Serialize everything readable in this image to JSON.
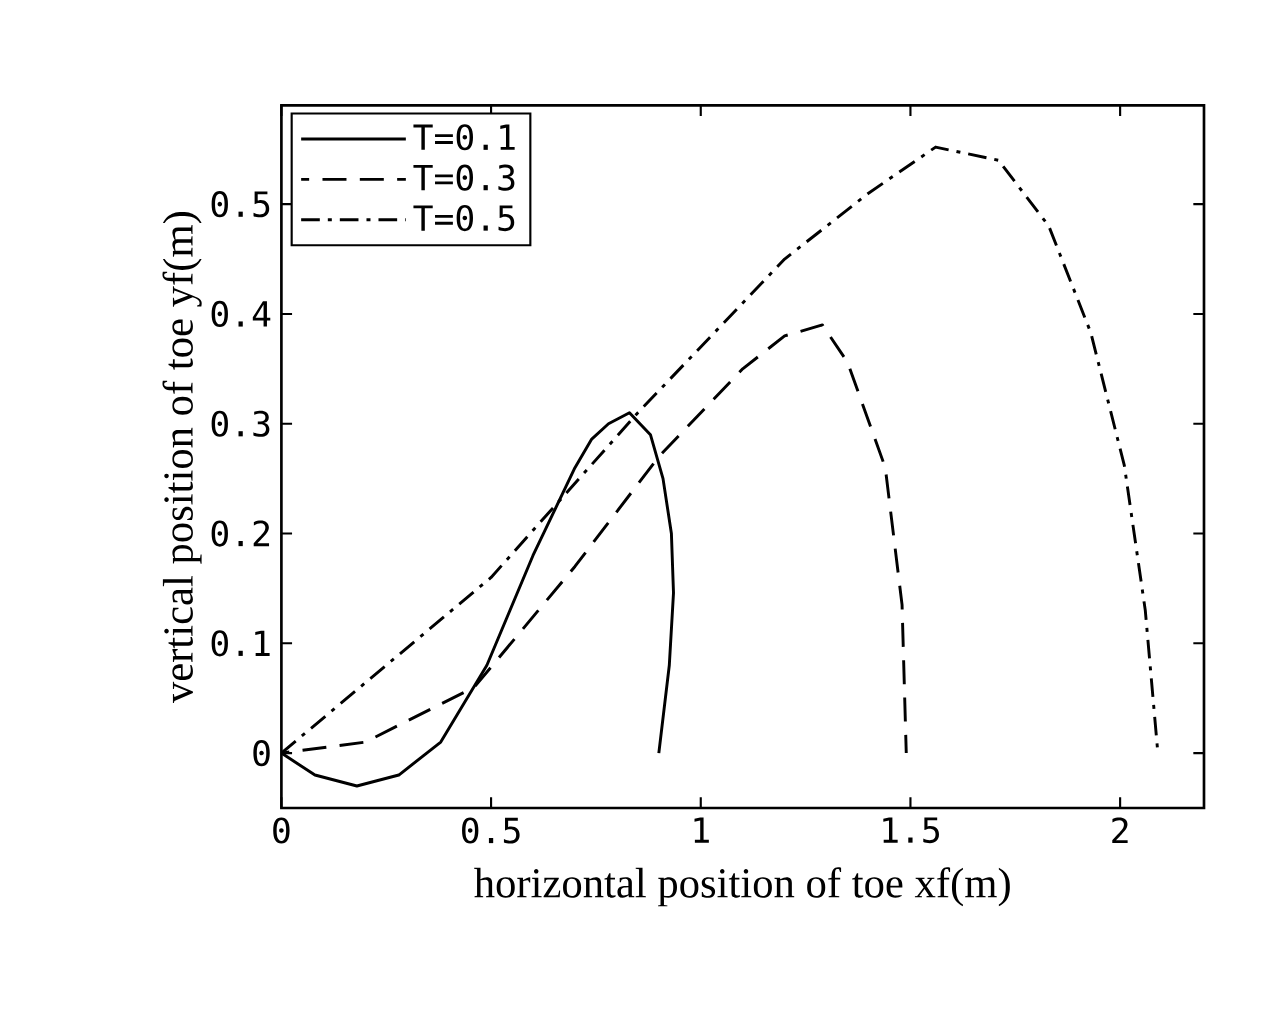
{
  "chart_data": {
    "type": "line",
    "xlabel": "horizontal position of toe xf(m)",
    "ylabel": "vertical position of toe yf(m)",
    "xlim": [
      0,
      2.2
    ],
    "ylim": [
      -0.05,
      0.59
    ],
    "xticks": [
      0,
      0.5,
      1,
      1.5,
      2
    ],
    "yticks": [
      0,
      0.1,
      0.2,
      0.3,
      0.4,
      0.5
    ],
    "grid": false,
    "legend": "top left",
    "marker": "none",
    "series": [
      {
        "name": "T=0.1",
        "color": "#000000",
        "line_style": "solid",
        "x": [
          0,
          0.08,
          0.18,
          0.28,
          0.38,
          0.49,
          0.6,
          0.7,
          0.74,
          0.78,
          0.83,
          0.88,
          0.91,
          0.93,
          0.935,
          0.925,
          0.9
        ],
        "values": [
          0,
          -0.02,
          -0.03,
          -0.02,
          0.01,
          0.08,
          0.18,
          0.26,
          0.286,
          0.3,
          0.31,
          0.29,
          0.25,
          0.2,
          0.146,
          0.08,
          0
        ]
      },
      {
        "name": "T=0.3",
        "color": "#000000",
        "line_style": "dashed",
        "x": [
          0,
          0.2,
          0.46,
          0.7,
          0.9,
          1.1,
          1.2,
          1.29,
          1.35,
          1.44,
          1.48,
          1.49
        ],
        "values": [
          0,
          0.01,
          0.06,
          0.17,
          0.27,
          0.35,
          0.38,
          0.39,
          0.356,
          0.26,
          0.135,
          0
        ]
      },
      {
        "name": "T=0.5",
        "color": "#000000",
        "line_style": "dashdot",
        "x": [
          0,
          0.5,
          0.85,
          1.2,
          1.4,
          1.56,
          1.71,
          1.83,
          1.93,
          2.01,
          2.06,
          2.09
        ],
        "values": [
          0,
          0.16,
          0.31,
          0.45,
          0.51,
          0.552,
          0.54,
          0.48,
          0.383,
          0.262,
          0.13,
          0
        ]
      }
    ]
  }
}
